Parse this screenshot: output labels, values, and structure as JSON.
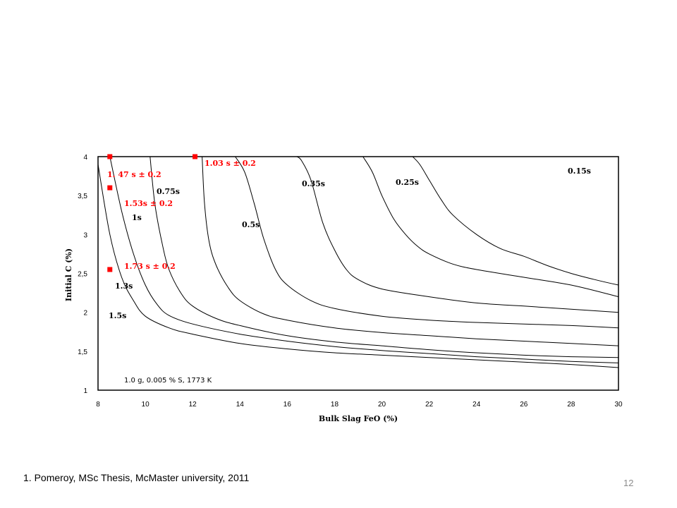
{
  "chart_data": {
    "type": "line",
    "title": "",
    "xlabel": "Bulk Slag FeO (%)",
    "ylabel": "Initial C (%)",
    "xlim": [
      8,
      30
    ],
    "ylim": [
      1,
      4
    ],
    "x_ticks": [
      8,
      10,
      12,
      14,
      16,
      18,
      20,
      22,
      24,
      26,
      28,
      30
    ],
    "y_ticks": [
      1,
      1.5,
      2,
      2.5,
      3,
      3.5,
      4
    ],
    "x_tick_labels": [
      "8",
      "10",
      "12",
      "14",
      "16",
      "18",
      "20",
      "22",
      "24",
      "26",
      "28",
      "30"
    ],
    "y_tick_labels": [
      "1",
      "1,5",
      "2",
      "2,5",
      "3",
      "3,5",
      "4"
    ],
    "grid": false,
    "annotation": "1.0 g, 0.005 % S, 1773 K",
    "series": [
      {
        "label": "1.5s",
        "x": [
          8,
          8.5,
          9,
          9.5,
          10,
          11,
          12,
          14,
          16,
          18,
          20,
          22,
          24,
          26,
          28,
          30
        ],
        "y": [
          3.9,
          3.0,
          2.45,
          2.15,
          1.95,
          1.8,
          1.72,
          1.6,
          1.53,
          1.48,
          1.45,
          1.42,
          1.39,
          1.36,
          1.33,
          1.29
        ]
      },
      {
        "label": "1.3s",
        "x": [
          8.5,
          9,
          9.5,
          10,
          10.5,
          11,
          12,
          14,
          16,
          18,
          20,
          22,
          24,
          26,
          28,
          30
        ],
        "y": [
          4.0,
          3.3,
          2.75,
          2.35,
          2.1,
          1.96,
          1.85,
          1.72,
          1.63,
          1.56,
          1.51,
          1.47,
          1.43,
          1.4,
          1.37,
          1.35
        ]
      },
      {
        "label": "1s",
        "x": [
          10.2,
          10.4,
          10.7,
          11,
          11.5,
          12,
          13,
          14,
          16,
          18,
          20,
          22,
          24,
          26,
          28,
          30
        ],
        "y": [
          4.0,
          3.4,
          2.9,
          2.55,
          2.25,
          2.08,
          1.92,
          1.83,
          1.7,
          1.62,
          1.57,
          1.52,
          1.48,
          1.45,
          1.43,
          1.42
        ]
      },
      {
        "label": "0.75s",
        "x": [
          12.4,
          12.5,
          12.7,
          13,
          13.5,
          14,
          15,
          16,
          18,
          20,
          22,
          24,
          26,
          28,
          30
        ],
        "y": [
          4.0,
          3.4,
          2.9,
          2.6,
          2.32,
          2.15,
          1.98,
          1.9,
          1.8,
          1.74,
          1.7,
          1.66,
          1.63,
          1.6,
          1.57
        ]
      },
      {
        "label": "0.5s",
        "x": [
          13.8,
          14.2,
          14.6,
          15,
          15.5,
          16,
          17,
          18,
          20,
          22,
          24,
          26,
          28,
          30
        ],
        "y": [
          4.0,
          3.8,
          3.4,
          2.95,
          2.55,
          2.35,
          2.15,
          2.05,
          1.95,
          1.9,
          1.87,
          1.85,
          1.83,
          1.8
        ]
      },
      {
        "label": "0.35s",
        "x": [
          16.4,
          16.6,
          17,
          17.5,
          18,
          18.5,
          19,
          20,
          22,
          24,
          26,
          28,
          30
        ],
        "y": [
          4.0,
          3.95,
          3.7,
          3.15,
          2.8,
          2.55,
          2.42,
          2.3,
          2.2,
          2.12,
          2.08,
          2.04,
          2.0
        ]
      },
      {
        "label": "0.25s",
        "x": [
          19.2,
          19.6,
          20,
          20.5,
          21,
          21.5,
          22,
          23,
          24,
          26,
          28,
          30
        ],
        "y": [
          4.0,
          3.8,
          3.5,
          3.2,
          3.0,
          2.85,
          2.75,
          2.62,
          2.55,
          2.45,
          2.35,
          2.2
        ]
      },
      {
        "label": "0.15s",
        "x": [
          21.3,
          21.6,
          22,
          22.5,
          23,
          24,
          25,
          26,
          27,
          28,
          29,
          30
        ],
        "y": [
          4.0,
          3.9,
          3.7,
          3.45,
          3.25,
          3.0,
          2.82,
          2.72,
          2.6,
          2.5,
          2.42,
          2.35
        ]
      }
    ],
    "experimental_points": [
      {
        "x": 8.5,
        "y": 4.0,
        "label": "1. 47 s ± 0.2"
      },
      {
        "x": 12.1,
        "y": 4.0,
        "label": "1.03 s ± 0.2"
      },
      {
        "x": 8.5,
        "y": 3.6,
        "label": "1.53s ± 0.2"
      },
      {
        "x": 8.5,
        "y": 2.55,
        "label": "1.73 s ± 0.2"
      }
    ],
    "colors": {
      "curve": "#000000",
      "point": "#ff0000"
    }
  },
  "footnote": "1. Pomeroy, MSc Thesis, McMaster university, 2011",
  "page_number": "12"
}
